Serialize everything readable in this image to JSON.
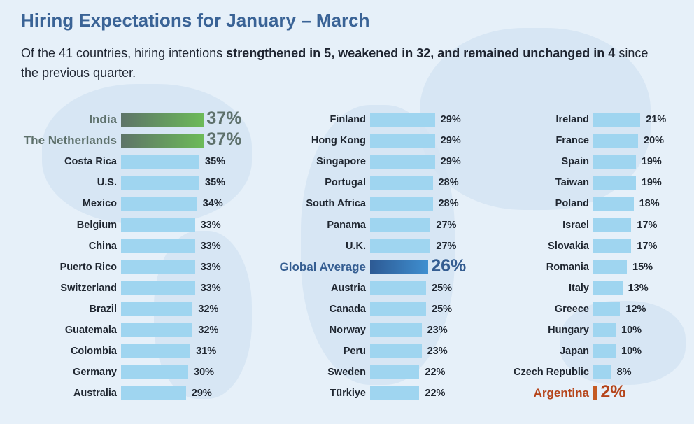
{
  "title": "Hiring Expectations for January – March",
  "subtitle": {
    "p1": "Of the 41 countries, hiring intentions ",
    "b1": "strengthened in 5, weakened in 32, and remained unchanged in 4",
    "p2": " since the previous quarter."
  },
  "chart_data": {
    "type": "bar",
    "orientation": "horizontal",
    "title": "Hiring Expectations for January – March",
    "unit": "%",
    "columns": [
      [
        {
          "name": "India",
          "value": 37,
          "highlight": "green"
        },
        {
          "name": "The Netherlands",
          "value": 37,
          "highlight": "green"
        },
        {
          "name": "Costa Rica",
          "value": 35
        },
        {
          "name": "U.S.",
          "value": 35
        },
        {
          "name": "Mexico",
          "value": 34
        },
        {
          "name": "Belgium",
          "value": 33
        },
        {
          "name": "China",
          "value": 33
        },
        {
          "name": "Puerto Rico",
          "value": 33
        },
        {
          "name": "Switzerland",
          "value": 33
        },
        {
          "name": "Brazil",
          "value": 32
        },
        {
          "name": "Guatemala",
          "value": 32
        },
        {
          "name": "Colombia",
          "value": 31
        },
        {
          "name": "Germany",
          "value": 30
        },
        {
          "name": "Australia",
          "value": 29
        }
      ],
      [
        {
          "name": "Finland",
          "value": 29
        },
        {
          "name": "Hong Kong",
          "value": 29
        },
        {
          "name": "Singapore",
          "value": 29
        },
        {
          "name": "Portugal",
          "value": 28
        },
        {
          "name": "South Africa",
          "value": 28
        },
        {
          "name": "Panama",
          "value": 27
        },
        {
          "name": "U.K.",
          "value": 27
        },
        {
          "name": "Global Average",
          "value": 26,
          "highlight": "blue"
        },
        {
          "name": "Austria",
          "value": 25
        },
        {
          "name": "Canada",
          "value": 25
        },
        {
          "name": "Norway",
          "value": 23
        },
        {
          "name": "Peru",
          "value": 23
        },
        {
          "name": "Sweden",
          "value": 22
        },
        {
          "name": "Türkiye",
          "value": 22
        }
      ],
      [
        {
          "name": "Ireland",
          "value": 21
        },
        {
          "name": "France",
          "value": 20
        },
        {
          "name": "Spain",
          "value": 19
        },
        {
          "name": "Taiwan",
          "value": 19
        },
        {
          "name": "Poland",
          "value": 18
        },
        {
          "name": "Israel",
          "value": 17
        },
        {
          "name": "Slovakia",
          "value": 17
        },
        {
          "name": "Romania",
          "value": 15
        },
        {
          "name": "Italy",
          "value": 13
        },
        {
          "name": "Greece",
          "value": 12
        },
        {
          "name": "Hungary",
          "value": 10
        },
        {
          "name": "Japan",
          "value": 10
        },
        {
          "name": "Czech Republic",
          "value": 8
        },
        {
          "name": "Argentina",
          "value": 2,
          "highlight": "orange"
        }
      ]
    ]
  }
}
